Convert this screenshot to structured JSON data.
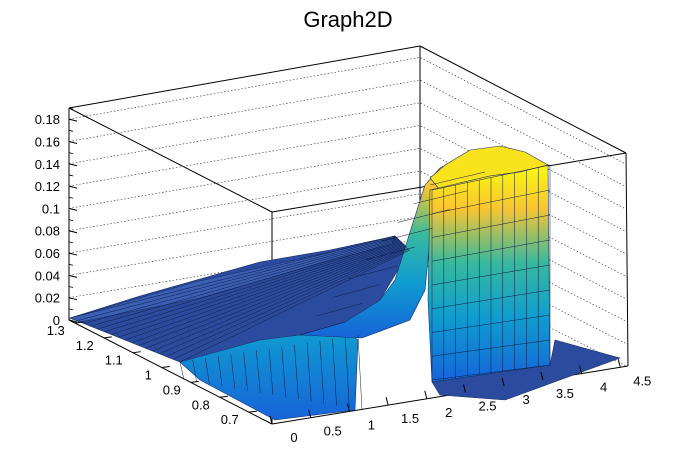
{
  "chart_data": {
    "type": "surface",
    "title": "Graph2D",
    "xlabel": "",
    "ylabel": "",
    "zlabel": "",
    "x_ticks": [
      "0",
      "0.5",
      "1",
      "1.5",
      "2",
      "2.5",
      "3",
      "3.5",
      "4",
      "4.5"
    ],
    "y_ticks": [
      "0.7",
      "0.8",
      "0.9",
      "1",
      "1.1",
      "1.2",
      "1.3"
    ],
    "z_ticks": [
      "0",
      "0.02",
      "0.04",
      "0.06",
      "0.08",
      "0.1",
      "0.12",
      "0.14",
      "0.16",
      "0.18"
    ],
    "xlim": [
      0,
      4.6
    ],
    "ylim": [
      0.62,
      1.32
    ],
    "zlim": [
      0,
      0.19
    ],
    "grid": true,
    "colormap": [
      "#352a87",
      "#1664d9",
      "#0f9dd0",
      "#38b99e",
      "#a5be6a",
      "#f9c52f",
      "#f9fb0e"
    ],
    "surface_profile": {
      "x": [
        0,
        0.5,
        1.0,
        1.5,
        1.8,
        2.0,
        2.2,
        2.5,
        3.0,
        3.5,
        4.0,
        4.5
      ],
      "z_at_y_max": [
        0.01,
        0.02,
        0.03,
        0.04,
        0.05,
        0.06,
        0.08,
        0.12,
        0.16,
        0.17,
        0.0,
        0.0
      ],
      "z_at_y_mid": [
        0.005,
        0.01,
        0.015,
        0.02,
        0.03,
        0.05,
        0.07,
        0.12,
        0.16,
        0.165,
        0.0,
        0.0
      ],
      "z_at_y_min": [
        0.0,
        0.0,
        0.005,
        0.01,
        0.0,
        0.0,
        0.0,
        0.0,
        0.0,
        0.0,
        0.0,
        0.0
      ]
    }
  }
}
